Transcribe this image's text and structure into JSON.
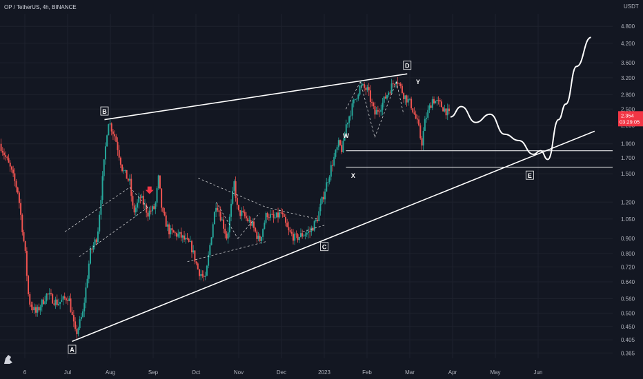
{
  "header": {
    "symbol": "OP / TetherUS, 4h, BINANCE"
  },
  "colors": {
    "background": "#131722",
    "grid": "#1e222d",
    "up": "#26a69a",
    "down": "#ef5350",
    "annotation": "#ffffff",
    "price_badge": "#f23645",
    "axis_text": "#b2b5be"
  },
  "chart_data": {
    "type": "candlestick",
    "x_axis": {
      "ticks": [
        "6",
        "Jul",
        "Aug",
        "Sep",
        "Oct",
        "Nov",
        "Dec",
        "2023",
        "Feb",
        "Mar",
        "Apr",
        "May",
        "Jun"
      ]
    },
    "y_axis": {
      "scale": "log",
      "unit_label": "USDT",
      "range": [
        0.35,
        5.3
      ],
      "ticks": [
        "4.800",
        "4.200",
        "3.600",
        "3.200",
        "2.800",
        "2.500",
        "2.200",
        "1.900",
        "1.700",
        "1.500",
        "1.200",
        "1.050",
        "0.900",
        "0.800",
        "0.720",
        "0.640",
        "0.560",
        "0.500",
        "0.450",
        "0.405",
        "0.365"
      ]
    },
    "current_price": {
      "value": "2.354",
      "countdown": "03:29:05"
    },
    "price_path": [
      {
        "x": 0,
        "y": 1.9
      },
      {
        "x": 3,
        "y": 1.55
      },
      {
        "x": 5,
        "y": 1.3
      },
      {
        "x": 7,
        "y": 0.8
      },
      {
        "x": 8,
        "y": 0.55
      },
      {
        "x": 10,
        "y": 0.5
      },
      {
        "x": 13,
        "y": 0.58
      },
      {
        "x": 16,
        "y": 0.54
      },
      {
        "x": 19,
        "y": 0.57
      },
      {
        "x": 21,
        "y": 0.42
      },
      {
        "x": 23,
        "y": 0.5
      },
      {
        "x": 25,
        "y": 0.8
      },
      {
        "x": 27,
        "y": 0.92
      },
      {
        "x": 29,
        "y": 1.7
      },
      {
        "x": 30,
        "y": 2.3
      },
      {
        "x": 32,
        "y": 2.0
      },
      {
        "x": 34,
        "y": 1.55
      },
      {
        "x": 36,
        "y": 1.4
      },
      {
        "x": 37,
        "y": 1.1
      },
      {
        "x": 39,
        "y": 1.25
      },
      {
        "x": 41,
        "y": 1.1
      },
      {
        "x": 43,
        "y": 1.15
      },
      {
        "x": 44,
        "y": 1.45
      },
      {
        "x": 45,
        "y": 1.1
      },
      {
        "x": 47,
        "y": 0.95
      },
      {
        "x": 50,
        "y": 0.92
      },
      {
        "x": 53,
        "y": 0.85
      },
      {
        "x": 55,
        "y": 0.7
      },
      {
        "x": 57,
        "y": 0.65
      },
      {
        "x": 59,
        "y": 1.0
      },
      {
        "x": 60,
        "y": 1.2
      },
      {
        "x": 62,
        "y": 1.0
      },
      {
        "x": 63,
        "y": 0.9
      },
      {
        "x": 65,
        "y": 1.4
      },
      {
        "x": 66,
        "y": 1.1
      },
      {
        "x": 67,
        "y": 1.1
      },
      {
        "x": 70,
        "y": 1.0
      },
      {
        "x": 72,
        "y": 0.88
      },
      {
        "x": 74,
        "y": 1.1
      },
      {
        "x": 76,
        "y": 1.05
      },
      {
        "x": 78,
        "y": 1.1
      },
      {
        "x": 80,
        "y": 0.95
      },
      {
        "x": 82,
        "y": 0.9
      },
      {
        "x": 84,
        "y": 0.93
      },
      {
        "x": 86,
        "y": 0.95
      },
      {
        "x": 88,
        "y": 1.05
      },
      {
        "x": 90,
        "y": 1.3
      },
      {
        "x": 92,
        "y": 1.6
      },
      {
        "x": 94,
        "y": 1.9
      },
      {
        "x": 95,
        "y": 1.8
      },
      {
        "x": 96,
        "y": 2.2
      },
      {
        "x": 98,
        "y": 2.6
      },
      {
        "x": 100,
        "y": 3.0
      },
      {
        "x": 102,
        "y": 2.9
      },
      {
        "x": 104,
        "y": 2.4
      },
      {
        "x": 106,
        "y": 2.6
      },
      {
        "x": 108,
        "y": 2.9
      },
      {
        "x": 110,
        "y": 3.2
      },
      {
        "x": 112,
        "y": 2.8
      },
      {
        "x": 114,
        "y": 2.6
      },
      {
        "x": 116,
        "y": 2.2
      },
      {
        "x": 117,
        "y": 1.9
      },
      {
        "x": 118,
        "y": 2.3
      },
      {
        "x": 120,
        "y": 2.7
      },
      {
        "x": 122,
        "y": 2.6
      },
      {
        "x": 124,
        "y": 2.45
      },
      {
        "x": 125,
        "y": 2.35
      }
    ],
    "projection_path": [
      {
        "x": 125,
        "y": 2.35
      },
      {
        "x": 128,
        "y": 2.55
      },
      {
        "x": 132,
        "y": 2.25
      },
      {
        "x": 136,
        "y": 2.4
      },
      {
        "x": 140,
        "y": 2.05
      },
      {
        "x": 144,
        "y": 1.95
      },
      {
        "x": 148,
        "y": 1.75
      },
      {
        "x": 150,
        "y": 1.8
      },
      {
        "x": 152,
        "y": 1.68
      },
      {
        "x": 155,
        "y": 2.3
      },
      {
        "x": 157,
        "y": 2.6
      },
      {
        "x": 160,
        "y": 3.5
      },
      {
        "x": 164,
        "y": 4.4
      }
    ],
    "trendlines": [
      {
        "name": "lower-support",
        "from": {
          "x": 20,
          "y": 0.4
        },
        "to": {
          "x": 165,
          "y": 2.1
        }
      },
      {
        "name": "upper-resistance",
        "from": {
          "x": 29,
          "y": 2.3
        },
        "to": {
          "x": 113,
          "y": 3.3
        }
      }
    ],
    "horizontal_lines": [
      {
        "name": "level-1.80",
        "y": 1.8,
        "from_x": 96
      },
      {
        "name": "level-1.58",
        "y": 1.58,
        "from_x": 96
      }
    ],
    "wave_labels": [
      {
        "label": "A",
        "x": 20,
        "y": 0.4,
        "boxed": true
      },
      {
        "label": "B",
        "x": 29,
        "y": 2.3,
        "boxed": true
      },
      {
        "label": "C",
        "x": 90,
        "y": 0.9,
        "boxed": true
      },
      {
        "label": "D",
        "x": 113,
        "y": 3.3,
        "boxed": true
      },
      {
        "label": "E",
        "x": 147,
        "y": 1.58,
        "boxed": true
      },
      {
        "label": "W",
        "x": 96,
        "y": 1.9,
        "boxed": false
      },
      {
        "label": "X",
        "x": 98,
        "y": 1.58,
        "boxed": false
      },
      {
        "label": "Y",
        "x": 116,
        "y": 2.9,
        "boxed": false
      }
    ]
  }
}
